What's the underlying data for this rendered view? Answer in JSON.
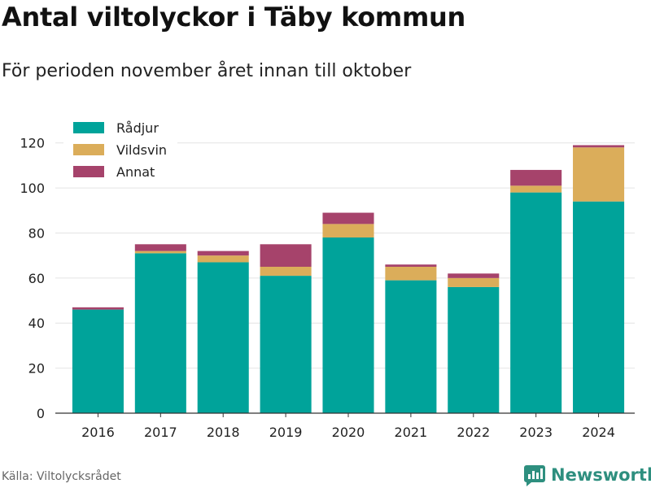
{
  "header": {
    "title": "Antal viltolyckor i Täby kommun",
    "subtitle": "För perioden november året innan till oktober"
  },
  "footer": {
    "source": "Källa: Viltolycksrådet",
    "brand": "Newsworthy",
    "brand_icon": "newsworthy-logo-icon"
  },
  "chart_data": {
    "type": "bar",
    "stacked": true,
    "categories": [
      "2016",
      "2017",
      "2018",
      "2019",
      "2020",
      "2021",
      "2022",
      "2023",
      "2024"
    ],
    "series": [
      {
        "name": "Rådjur",
        "color": "#00a39a",
        "values": [
          46,
          71,
          67,
          61,
          78,
          59,
          56,
          98,
          94
        ]
      },
      {
        "name": "Vildsvin",
        "color": "#dbad5a",
        "values": [
          0,
          1,
          3,
          4,
          6,
          6,
          4,
          3,
          24
        ]
      },
      {
        "name": "Annat",
        "color": "#a6436b",
        "values": [
          1,
          3,
          2,
          10,
          5,
          1,
          2,
          7,
          1
        ]
      }
    ],
    "yticks": [
      "0",
      "20",
      "40",
      "60",
      "80",
      "100",
      "120"
    ],
    "ylim": [
      0,
      130
    ],
    "xlabel": "",
    "ylabel": "",
    "grid": true,
    "legend": "top-left"
  }
}
